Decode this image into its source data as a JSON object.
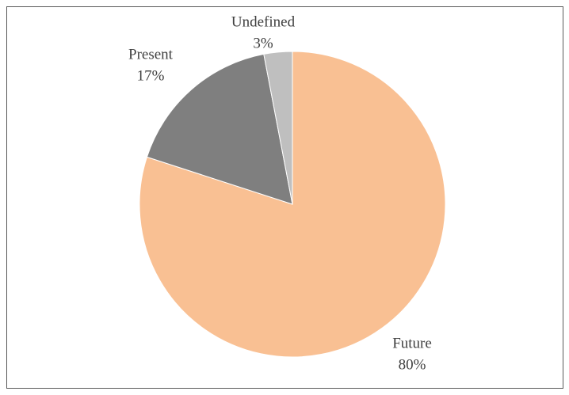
{
  "chart_data": {
    "type": "pie",
    "categories": [
      "Future",
      "Present",
      "Undefined"
    ],
    "values": [
      80,
      17,
      3
    ],
    "value_labels": [
      "80%",
      "17%",
      "3%"
    ],
    "colors": [
      "#f9c093",
      "#7f7f7f",
      "#bfbfbf"
    ]
  }
}
